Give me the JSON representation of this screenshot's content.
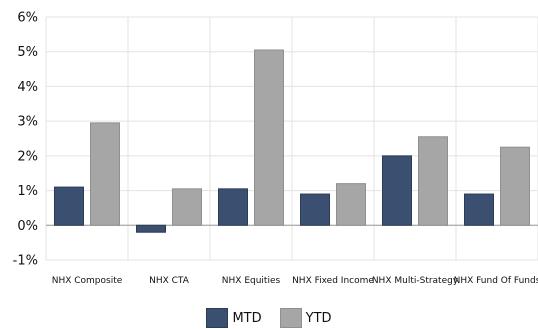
{
  "chart_data": {
    "type": "bar",
    "categories": [
      "NHX Composite",
      "NHX CTA",
      "NHX Equities",
      "NHX Fixed Income",
      "NHX Multi-Strategy",
      "NHX Fund Of Funds"
    ],
    "series": [
      {
        "name": "MTD",
        "color": "#3b5070",
        "values": [
          1.1,
          -0.2,
          1.05,
          0.9,
          2.0,
          0.9
        ]
      },
      {
        "name": "YTD",
        "color": "#a6a6a6",
        "values": [
          2.95,
          1.05,
          5.05,
          1.2,
          2.55,
          2.25
        ]
      }
    ],
    "ylim": [
      -1,
      6
    ],
    "yticks": [
      "-1%",
      "0%",
      "1%",
      "2%",
      "3%",
      "4%",
      "5%",
      "6%"
    ],
    "grid": true,
    "legend_position": "bottom-center"
  }
}
